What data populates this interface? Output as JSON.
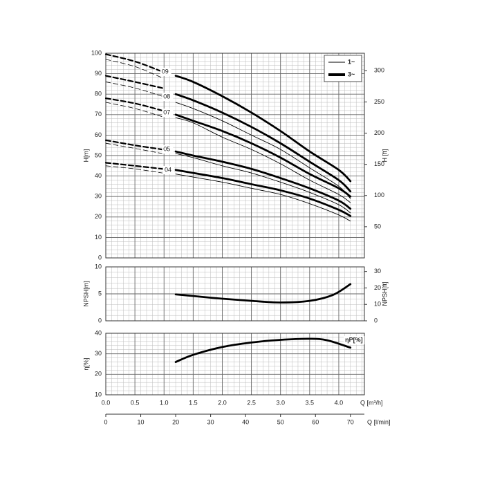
{
  "chart_data": [
    {
      "type": "line",
      "ylabel": "H[m]",
      "y2label": "H [ft]",
      "xlim": [
        0,
        4.44
      ],
      "ylim": [
        0,
        100
      ],
      "yticks": [
        0,
        10,
        20,
        30,
        40,
        50,
        60,
        70,
        80,
        90,
        100
      ],
      "y2lim": [
        0,
        328.08
      ],
      "y2ticks": [
        50,
        100,
        150,
        200,
        250,
        300
      ],
      "xminor": 0.1,
      "yminor": 2,
      "grid": true,
      "legend": [
        {
          "name": "1~",
          "width": 1
        },
        {
          "name": "3~",
          "width": 4
        }
      ],
      "legend_position": "top right",
      "series": [
        {
          "width": 2.8,
          "dashed": false,
          "color": "#000000",
          "x": [
            1.2,
            1.5,
            2.0,
            2.5,
            3.0,
            3.5,
            4.0,
            4.2
          ],
          "values": [
            89,
            86,
            79,
            71,
            62,
            52,
            43,
            37.5
          ]
        },
        {
          "width": 0.9,
          "dashed": false,
          "color": "#000000",
          "x": [
            1.2,
            1.5,
            2.0,
            2.5,
            3.0,
            3.5,
            4.0,
            4.2
          ],
          "values": [
            76,
            73,
            67,
            60,
            53,
            44,
            35,
            29
          ]
        },
        {
          "width": 2.8,
          "dashed": false,
          "color": "#000000",
          "x": [
            1.2,
            1.5,
            2.0,
            2.5,
            3.0,
            3.5,
            4.0,
            4.2
          ],
          "values": [
            80,
            77,
            71,
            64,
            56,
            47,
            38,
            32.5
          ]
        },
        {
          "width": 2.8,
          "dashed": false,
          "color": "#000000",
          "x": [
            1.2,
            1.5,
            2.0,
            2.5,
            3.0,
            3.5,
            4.0,
            4.2
          ],
          "values": [
            70,
            67,
            62,
            56,
            49,
            41,
            34,
            30
          ]
        },
        {
          "width": 0.9,
          "dashed": false,
          "color": "#000000",
          "x": [
            1.2,
            1.5,
            2.0,
            2.5,
            3.0,
            3.5,
            4.0,
            4.2
          ],
          "values": [
            68.5,
            66,
            59,
            53,
            46,
            38,
            31,
            27
          ]
        },
        {
          "width": 2.8,
          "dashed": false,
          "color": "#000000",
          "x": [
            1.2,
            1.5,
            2.0,
            2.5,
            3.0,
            3.5,
            4.0,
            4.2
          ],
          "values": [
            52,
            50,
            47,
            43.5,
            39,
            34,
            28,
            24
          ]
        },
        {
          "width": 0.9,
          "dashed": false,
          "color": "#000000",
          "x": [
            1.2,
            1.5,
            2.0,
            2.5,
            3.0,
            3.5,
            4.0,
            4.2
          ],
          "values": [
            51,
            49,
            45,
            41.5,
            37,
            32,
            26,
            22
          ]
        },
        {
          "width": 2.8,
          "dashed": false,
          "color": "#000000",
          "x": [
            1.2,
            1.5,
            2.0,
            2.5,
            3.0,
            3.5,
            4.0,
            4.2
          ],
          "values": [
            43,
            41.5,
            39,
            36,
            33,
            29,
            23.5,
            20.5
          ]
        },
        {
          "width": 0.9,
          "dashed": false,
          "color": "#000000",
          "x": [
            1.2,
            1.5,
            2.0,
            2.5,
            3.0,
            3.5,
            4.0,
            4.2
          ],
          "values": [
            41,
            39.5,
            37,
            34,
            31,
            26.5,
            21,
            18
          ]
        },
        {
          "width": 2.2,
          "dashed": true,
          "color": "#000000",
          "x": [
            0,
            0.5,
            0.97
          ],
          "values": [
            99.5,
            96,
            91
          ]
        },
        {
          "width": 0.8,
          "dashed": true,
          "color": "#000000",
          "x": [
            0,
            0.5,
            0.97
          ],
          "values": [
            97,
            93.5,
            88
          ]
        },
        {
          "width": 2.2,
          "dashed": true,
          "color": "#000000",
          "x": [
            0,
            0.5,
            0.97
          ],
          "values": [
            89,
            86,
            83
          ]
        },
        {
          "width": 0.8,
          "dashed": true,
          "color": "#000000",
          "x": [
            0,
            0.5,
            0.97
          ],
          "values": [
            86,
            83,
            79
          ]
        },
        {
          "width": 2.2,
          "dashed": true,
          "color": "#000000",
          "x": [
            0,
            0.5,
            0.97
          ],
          "values": [
            78,
            75.5,
            72
          ]
        },
        {
          "width": 0.8,
          "dashed": true,
          "color": "#000000",
          "x": [
            0,
            0.5,
            0.97
          ],
          "values": [
            76,
            73,
            69
          ]
        },
        {
          "width": 2.2,
          "dashed": true,
          "color": "#000000",
          "x": [
            0,
            0.5,
            0.97
          ],
          "values": [
            57.5,
            55,
            53
          ]
        },
        {
          "width": 0.8,
          "dashed": true,
          "color": "#000000",
          "x": [
            0,
            0.5,
            0.97
          ],
          "values": [
            56,
            53.5,
            51
          ]
        },
        {
          "width": 2.2,
          "dashed": true,
          "color": "#000000",
          "x": [
            0,
            0.5,
            0.97
          ],
          "values": [
            46.5,
            45,
            43.5
          ]
        },
        {
          "width": 0.8,
          "dashed": true,
          "color": "#000000",
          "x": [
            0,
            0.5,
            0.97
          ],
          "values": [
            45,
            43.5,
            41.5
          ]
        }
      ],
      "annotations": [
        {
          "text": "09",
          "x": 1.03,
          "y": 90.9
        },
        {
          "text": "08",
          "x": 1.06,
          "y": 78.7
        },
        {
          "text": "07",
          "x": 1.06,
          "y": 70.9
        },
        {
          "text": "05",
          "x": 1.06,
          "y": 53
        },
        {
          "text": "04",
          "x": 1.08,
          "y": 42.9
        }
      ]
    },
    {
      "type": "line",
      "ylabel": "NPSH[m]",
      "y2label": "NPSH[ft]",
      "xlim": [
        0,
        4.44
      ],
      "ylim": [
        0,
        10
      ],
      "yticks": [
        0,
        5,
        10
      ],
      "y2lim": [
        0,
        32.81
      ],
      "y2ticks": [
        0,
        10,
        20,
        30
      ],
      "xminor": 0.1,
      "yminor": 1,
      "grid": true,
      "series": [
        {
          "width": 2.8,
          "dashed": false,
          "color": "#000000",
          "x": [
            1.2,
            1.5,
            2.0,
            2.5,
            3.0,
            3.5,
            3.9,
            4.2
          ],
          "values": [
            4.9,
            4.6,
            4.1,
            3.7,
            3.4,
            3.7,
            4.8,
            6.8
          ]
        }
      ]
    },
    {
      "type": "line",
      "ylabel": "η[%]",
      "xlim": [
        0,
        4.44
      ],
      "ylim": [
        10,
        40
      ],
      "yticks": [
        10,
        20,
        30,
        40
      ],
      "xticks": [
        {
          "value": 0,
          "label": "0.0"
        },
        0.5,
        {
          "value": 1,
          "label": "1.0"
        },
        1.5,
        {
          "value": 2,
          "label": "2.0"
        },
        2.5,
        {
          "value": 3,
          "label": "3.0"
        },
        3.5,
        {
          "value": 4,
          "label": "4.0"
        }
      ],
      "xlabel": "Q [m³/h]",
      "x2lim": [
        0,
        74
      ],
      "x2ticks": [
        0,
        10,
        20,
        30,
        40,
        50,
        60,
        70
      ],
      "x2label": "Q [l/min]",
      "xminor": 0.1,
      "yminor": 2,
      "grid": true,
      "series": [
        {
          "width": 2.8,
          "dashed": false,
          "color": "#000000",
          "x": [
            1.2,
            1.5,
            2.0,
            2.5,
            3.0,
            3.5,
            3.8,
            4.2
          ],
          "values": [
            26,
            29.5,
            33.3,
            35.5,
            36.8,
            37.3,
            36.6,
            33
          ]
        }
      ],
      "annotations": [
        {
          "text": "ηP[%]",
          "x": 4.18,
          "y": 36.6
        }
      ]
    }
  ]
}
